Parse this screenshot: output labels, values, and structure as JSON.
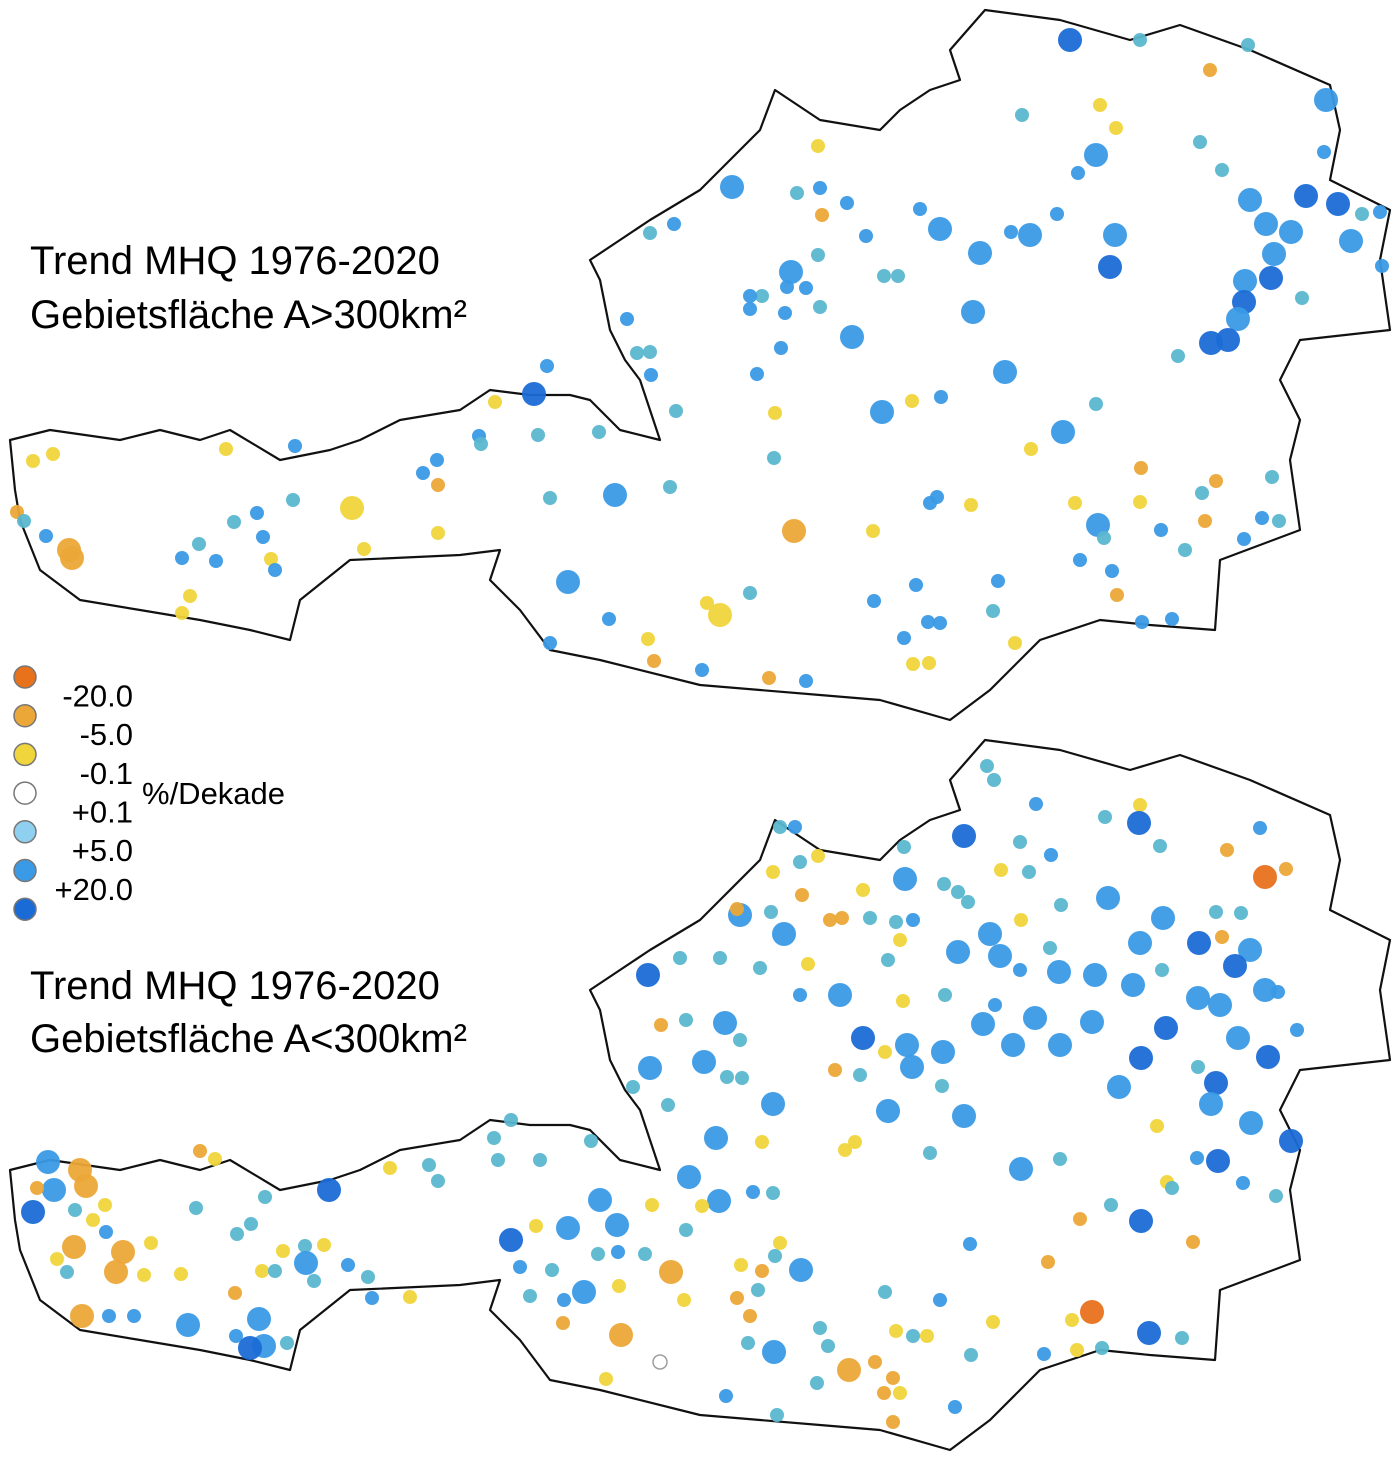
{
  "maps": [
    {
      "title_lines": [
        "Trend MHQ 1976-2020",
        "Gebietsfläche A>300km²"
      ]
    },
    {
      "title_lines": [
        "Trend MHQ 1976-2020",
        "Gebietsfläche A<300km²"
      ]
    }
  ],
  "legend": {
    "colors": [
      "#e8711c",
      "#eba838",
      "#f0d53c",
      "#ffffff",
      "#8fd0f0",
      "#3a9ae6",
      "#1b6bd6"
    ],
    "labels": [
      "-20.0",
      "-5.0",
      "-0.1",
      "+0.1",
      "+5.0",
      "+20.0"
    ],
    "unit": "%/Dekade"
  }
}
